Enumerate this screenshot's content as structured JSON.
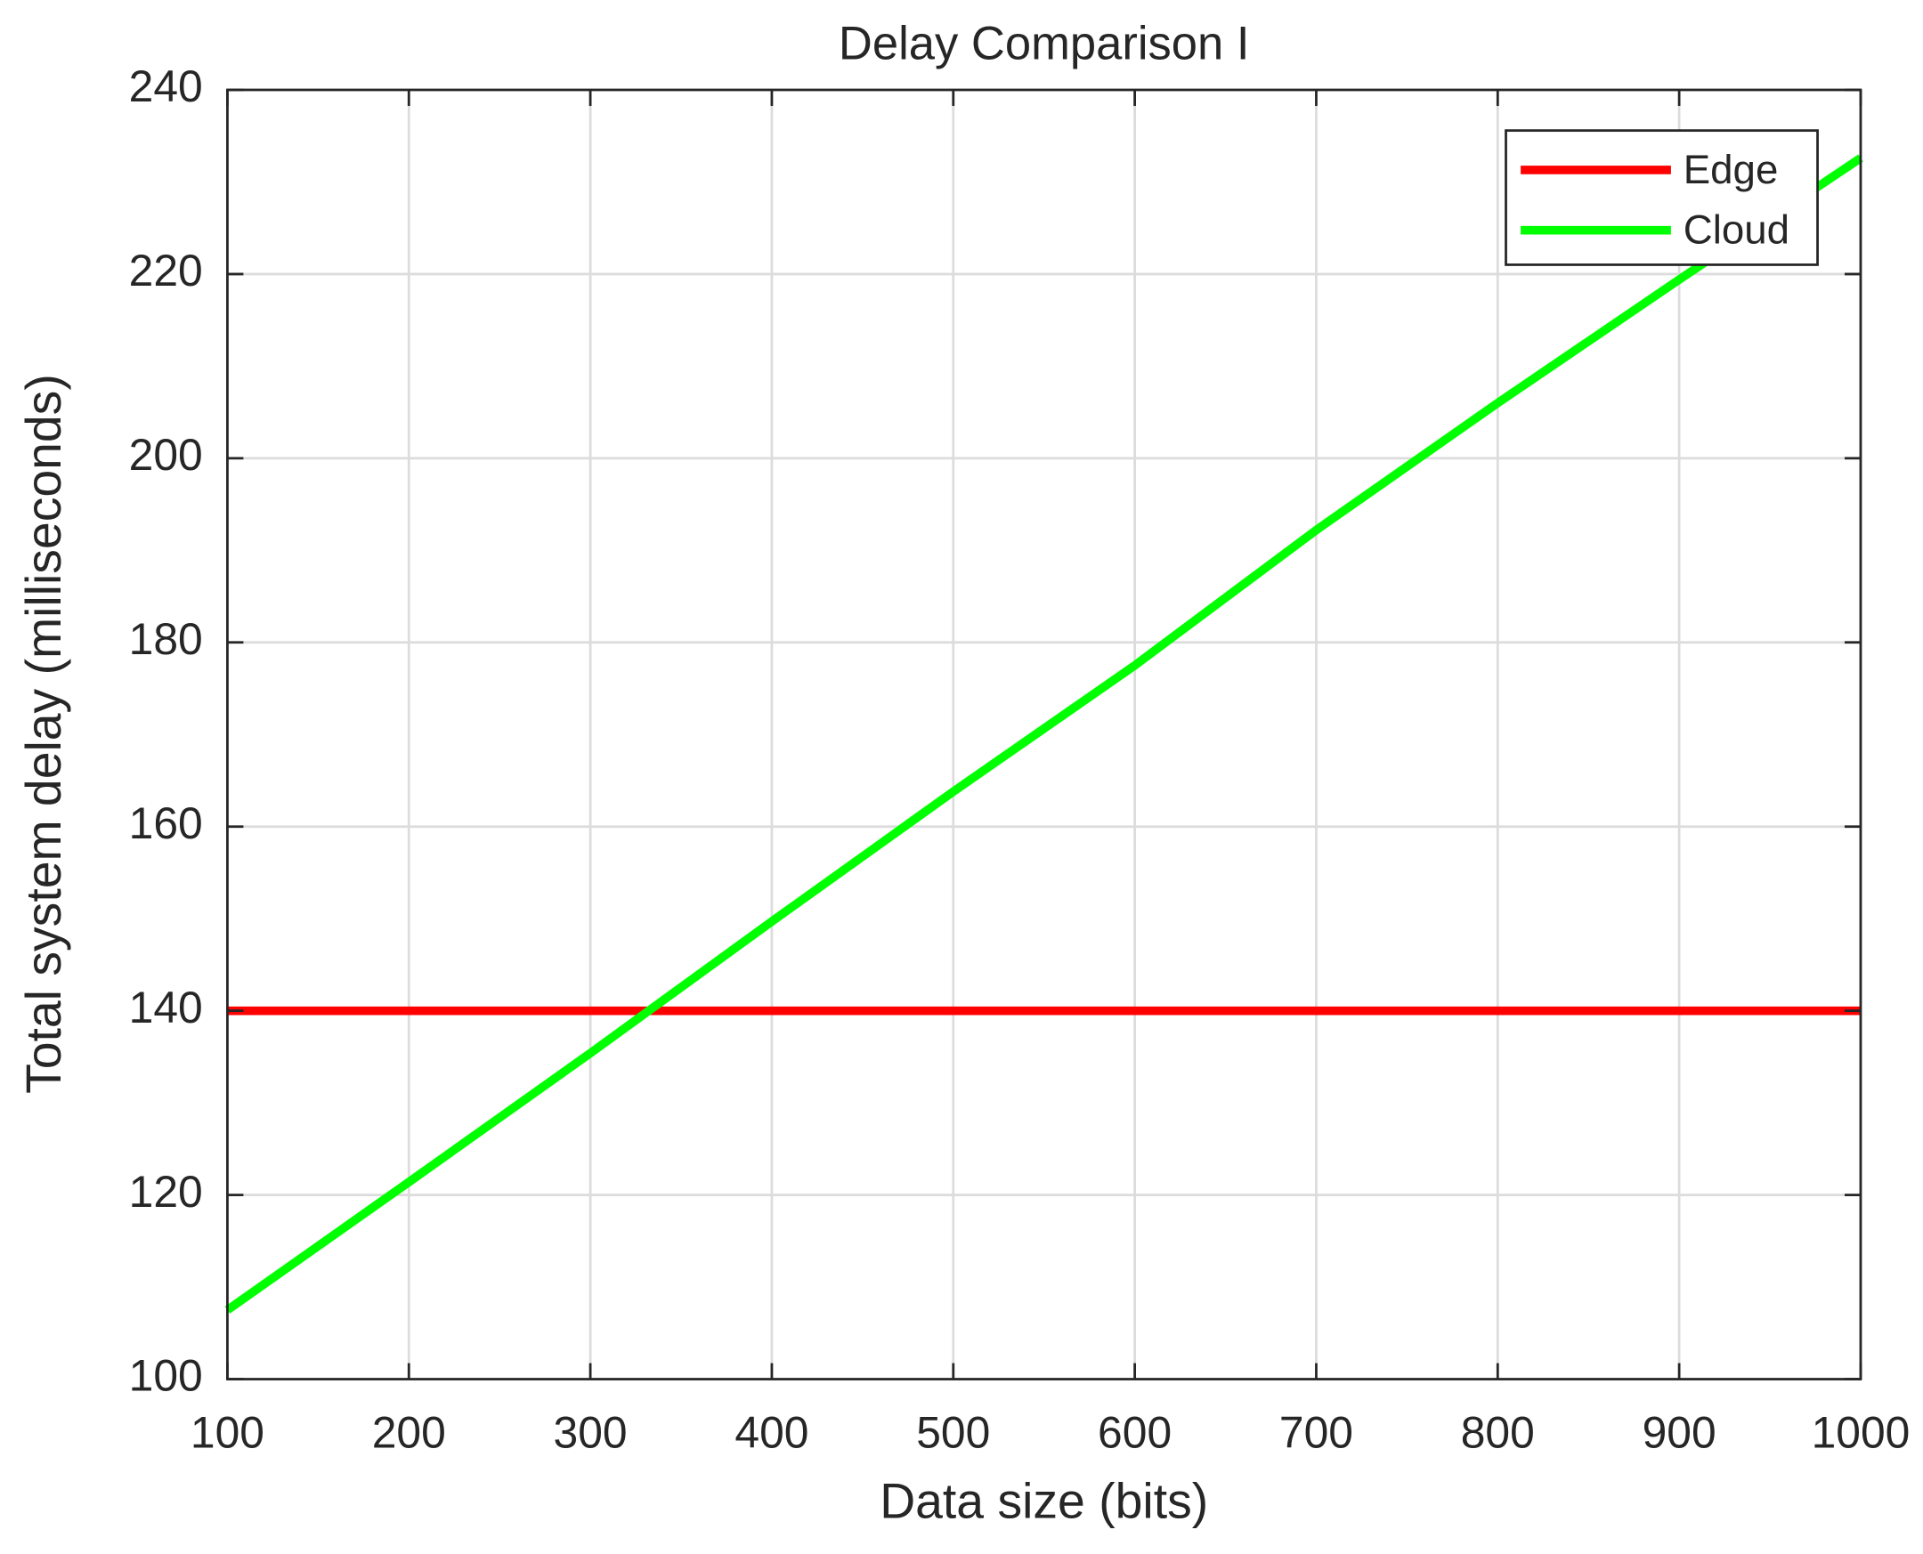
{
  "chart_data": {
    "type": "line",
    "title": "Delay Comparison I",
    "xlabel": "Data size (bits)",
    "ylabel": "Total system delay (milliseconds)",
    "x": [
      100,
      200,
      300,
      400,
      500,
      600,
      700,
      800,
      900,
      1000
    ],
    "series": [
      {
        "name": "Edge",
        "color": "#ff0000",
        "values": [
          140,
          140,
          140,
          140,
          140,
          140,
          140,
          140,
          140,
          140
        ]
      },
      {
        "name": "Cloud",
        "color": "#00ff00",
        "values": [
          107.5,
          121.4,
          135.4,
          149.7,
          163.8,
          177.5,
          192.2,
          206,
          219.4,
          232.6
        ]
      }
    ],
    "xlim": [
      100,
      1000
    ],
    "xticks": [
      100,
      200,
      300,
      400,
      500,
      600,
      700,
      800,
      900,
      1000
    ],
    "ylim": [
      100,
      240
    ],
    "yticks": [
      100,
      120,
      140,
      160,
      180,
      200,
      220,
      240
    ],
    "grid": true,
    "legend": "northeast"
  }
}
